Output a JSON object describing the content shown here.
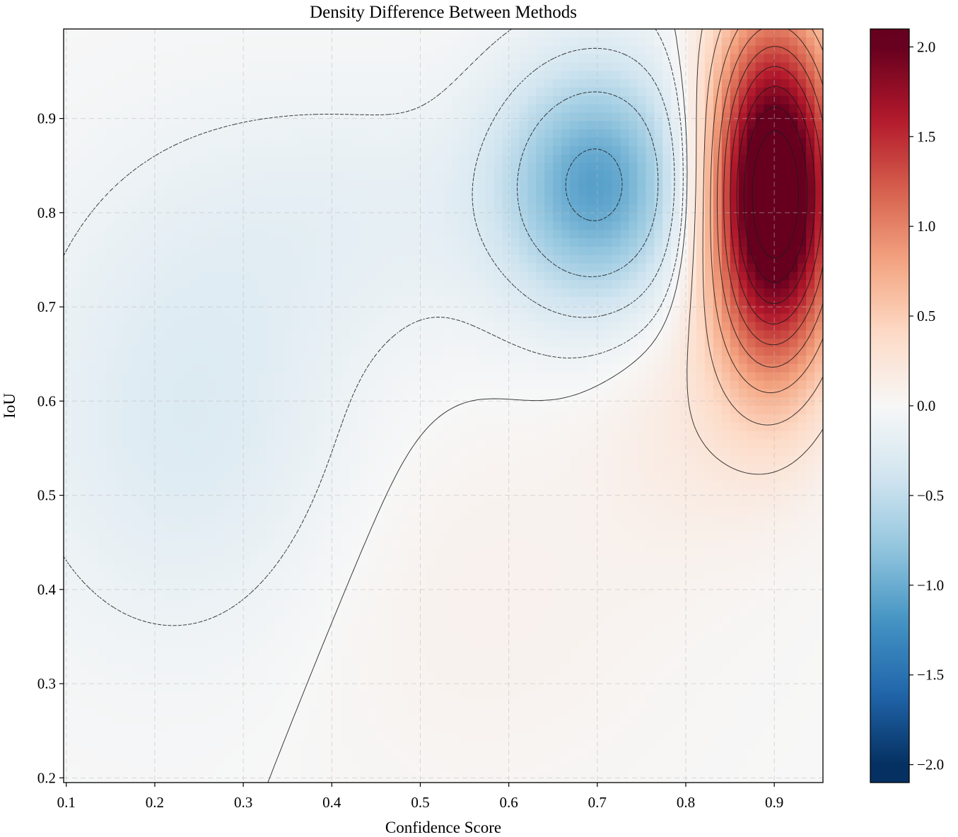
{
  "chart_data": {
    "type": "heatmap",
    "title": "Density Difference Between Methods",
    "xlabel": "Confidence Score",
    "ylabel": "IoU",
    "xlim": [
      0.097,
      0.955
    ],
    "ylim": [
      0.195,
      0.995
    ],
    "x_ticks": [
      0.1,
      0.2,
      0.3,
      0.4,
      0.5,
      0.6,
      0.7,
      0.8,
      0.9
    ],
    "x_tick_labels": [
      "0.1",
      "0.2",
      "0.3",
      "0.4",
      "0.5",
      "0.6",
      "0.7",
      "0.8",
      "0.9"
    ],
    "y_ticks": [
      0.2,
      0.3,
      0.4,
      0.5,
      0.6,
      0.7,
      0.8,
      0.9
    ],
    "y_tick_labels": [
      "0.2",
      "0.3",
      "0.4",
      "0.5",
      "0.6",
      "0.7",
      "0.8",
      "0.9"
    ],
    "grid": true,
    "colormap": "RdBu_r",
    "colormap_stops": [
      "#053061",
      "#2166ac",
      "#4393c3",
      "#92c5de",
      "#d1e5f0",
      "#f7f7f7",
      "#fddbc7",
      "#f4a582",
      "#d6604d",
      "#b2182b",
      "#67001f"
    ],
    "color_range": [
      -2.0,
      2.0
    ],
    "display_range": [
      -2.1,
      2.1
    ],
    "colorbar_ticks": [
      2.0,
      1.5,
      1.0,
      0.5,
      0.0,
      -0.5,
      -1.0,
      -1.5,
      -2.0
    ],
    "colorbar_tick_labels": [
      "2.0",
      "1.5",
      "1.0",
      "0.5",
      "0.0",
      "−0.5",
      "−1.0",
      "−1.5",
      "−2.0"
    ],
    "density_components": [
      {
        "x": 0.9,
        "y": 0.82,
        "sx": 0.052,
        "sy": 0.13,
        "amp": 2.6
      },
      {
        "x": 0.7,
        "y": 0.83,
        "sx": 0.075,
        "sy": 0.09,
        "amp": -1.05
      },
      {
        "x": 0.24,
        "y": 0.58,
        "sx": 0.13,
        "sy": 0.16,
        "amp": -0.28
      },
      {
        "x": 0.45,
        "y": 0.8,
        "sx": 0.17,
        "sy": 0.1,
        "amp": -0.15
      },
      {
        "x": 0.56,
        "y": 0.4,
        "sx": 0.16,
        "sy": 0.15,
        "amp": 0.09
      },
      {
        "x": 0.8,
        "y": 0.58,
        "sx": 0.07,
        "sy": 0.1,
        "amp": 0.15
      }
    ],
    "contour_levels": [
      -1.0,
      -0.6,
      -0.3,
      -0.1,
      0.0,
      0.25,
      0.5,
      0.75,
      1.0,
      1.25,
      1.5,
      1.75,
      2.0,
      2.25
    ]
  }
}
